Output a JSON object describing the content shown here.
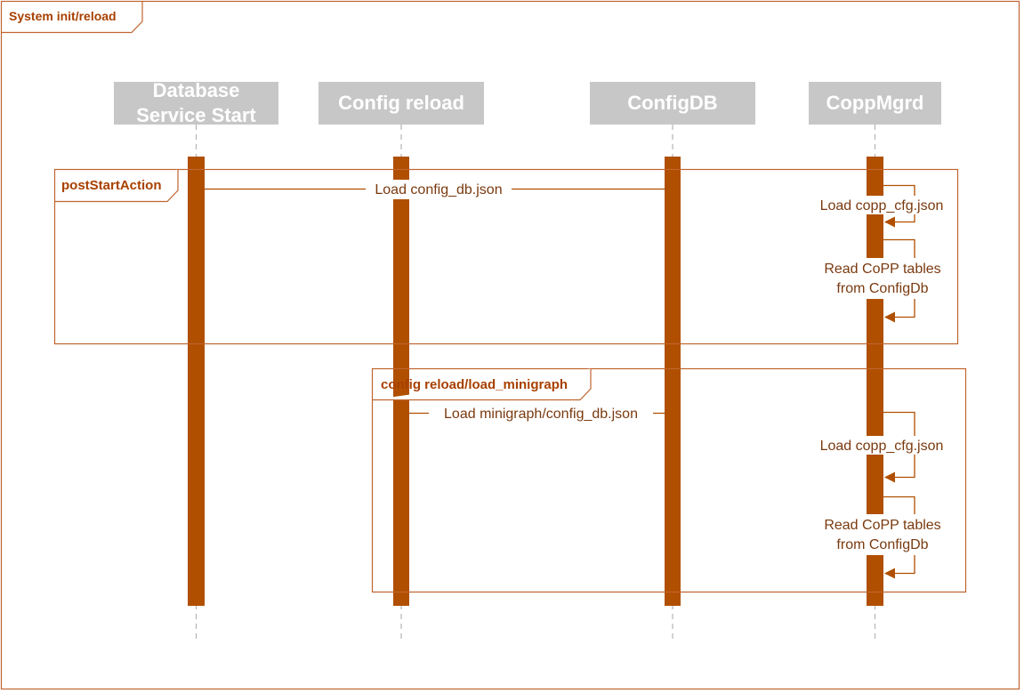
{
  "diagram": {
    "title": "System init/reload",
    "colors": {
      "accent": "#b04f00",
      "frame_border": "#c0642f",
      "participant_fill": "#c7c7c7",
      "lifeline": "#b3b3b3",
      "text": "#7a3a10"
    },
    "participants": [
      {
        "name_lines": [
          "Database",
          "Service Start"
        ]
      },
      {
        "name_lines": [
          "Config reload"
        ]
      },
      {
        "name_lines": [
          "ConfigDB"
        ]
      },
      {
        "name_lines": [
          "CoppMgrd"
        ]
      }
    ],
    "fragments": [
      {
        "label": "postStartAction",
        "message": "Load config_db.json",
        "self_calls": [
          {
            "lines": [
              "Load copp_cfg.json"
            ]
          },
          {
            "lines": [
              "Read CoPP tables",
              "from ConfigDb"
            ]
          }
        ]
      },
      {
        "label": "config reload/load_minigraph",
        "message": "Load minigraph/config_db.json",
        "self_calls": [
          {
            "lines": [
              "Load copp_cfg.json"
            ]
          },
          {
            "lines": [
              "Read CoPP tables",
              "from ConfigDb"
            ]
          }
        ]
      }
    ]
  }
}
